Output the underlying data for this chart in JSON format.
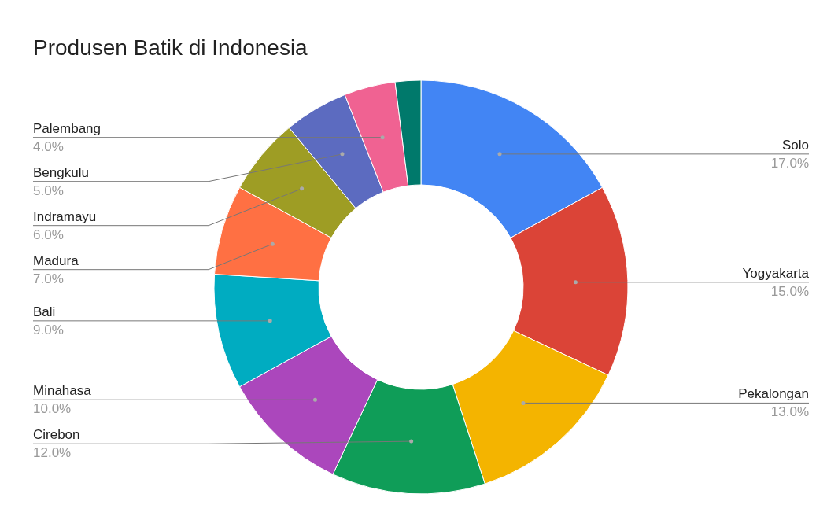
{
  "chart_data": {
    "type": "donut",
    "title": "Produsen Batik di Indonesia",
    "categories": [
      "Solo",
      "Yogyakarta",
      "Pekalongan",
      "Cirebon",
      "Minahasa",
      "Bali",
      "Madura",
      "Indramayu",
      "Bengkulu",
      "Palembang",
      null
    ],
    "values": [
      17,
      15,
      13,
      12,
      10,
      9,
      7,
      6,
      5,
      4,
      2
    ],
    "colors": [
      "#4285f4",
      "#db4437",
      "#f4b400",
      "#0f9d58",
      "#ab47bc",
      "#00acc1",
      "#ff7043",
      "#9e9d24",
      "#5c6bc0",
      "#f06292",
      "#00796b"
    ],
    "value_labels": [
      "17.0%",
      "15.0%",
      "13.0%",
      "12.0%",
      "10.0%",
      "9.0%",
      "7.0%",
      "6.0%",
      "5.0%",
      "4.0%",
      null
    ]
  }
}
